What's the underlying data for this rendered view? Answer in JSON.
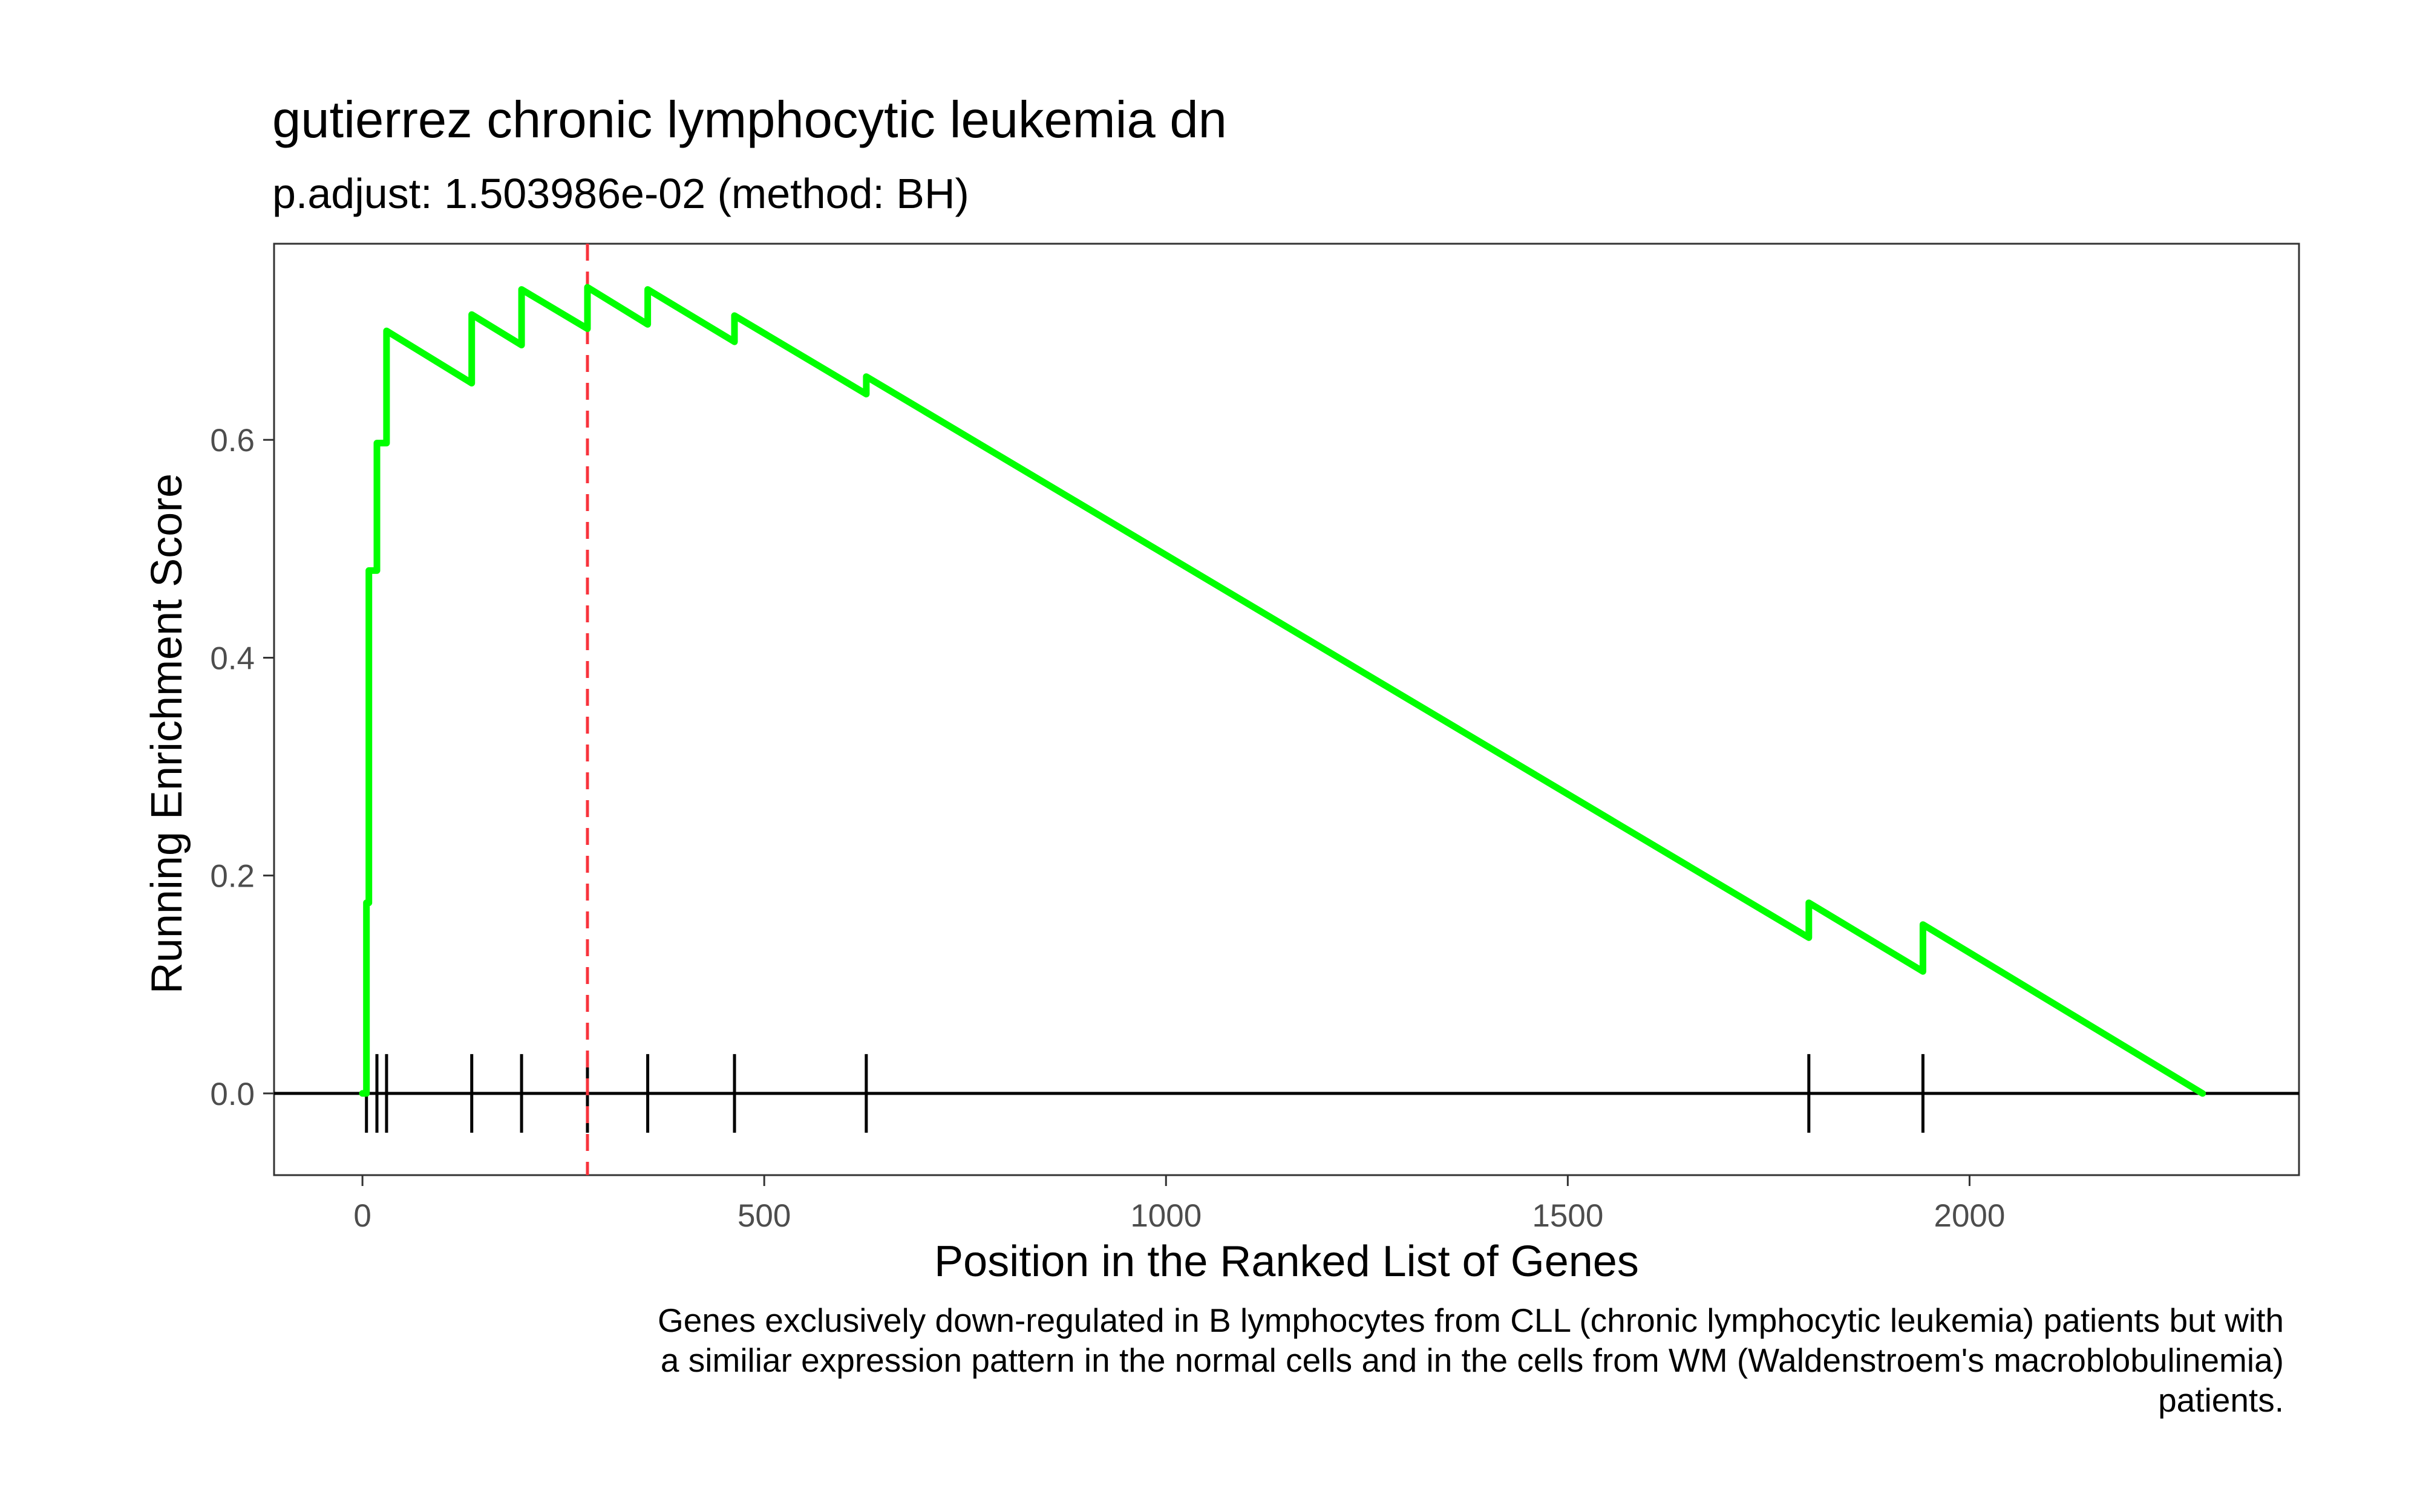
{
  "chart_data": {
    "type": "line",
    "title": "gutierrez chronic lymphocytic leukemia dn",
    "subtitle": "p.adjust: 1.503986e-02 (method: BH)",
    "xlabel": "Position in the Ranked List of Genes",
    "ylabel": "Running Enrichment Score",
    "xlim": [
      -110,
      2410
    ],
    "ylim": [
      -0.075,
      0.78
    ],
    "x_ticks": [
      0,
      500,
      1000,
      1500,
      2000
    ],
    "x_tick_labels": [
      "0",
      "500",
      "1000",
      "1500",
      "2000"
    ],
    "y_ticks": [
      0.0,
      0.2,
      0.4,
      0.6
    ],
    "y_tick_labels": [
      "0.0",
      "0.2",
      "0.4",
      "0.6"
    ],
    "grid": false,
    "series": [
      {
        "color": "#00FF00",
        "x": [
          0,
          5,
          5,
          8,
          8,
          18,
          18,
          20,
          20,
          30,
          30,
          136,
          136,
          198,
          198,
          280,
          280,
          355,
          355,
          463,
          463,
          627,
          627,
          1800,
          1800,
          1942,
          1942,
          2290
        ],
        "y": [
          0.0,
          0.0,
          0.175,
          0.175,
          0.48,
          0.48,
          0.597,
          0.597,
          0.597,
          0.597,
          0.7,
          0.652,
          0.715,
          0.687,
          0.738,
          0.702,
          0.74,
          0.706,
          0.738,
          0.69,
          0.714,
          0.642,
          0.658,
          0.143,
          0.175,
          0.112,
          0.155,
          0.0
        ]
      }
    ],
    "hits": [
      5,
      18,
      30,
      136,
      198,
      280,
      355,
      463,
      627,
      1800,
      1942
    ],
    "peak_x": 280,
    "peak_line_color": "#F8333C",
    "zero_line": 0.0,
    "caption_lines": [
      "Genes exclusively down-regulated in B lymphocytes from CLL (chronic lymphocytic leukemia) patients but with",
      "a similiar expression pattern in the normal cells and in the cells from WM (Waldenstroem's macroblobulinemia)",
      "patients."
    ]
  }
}
